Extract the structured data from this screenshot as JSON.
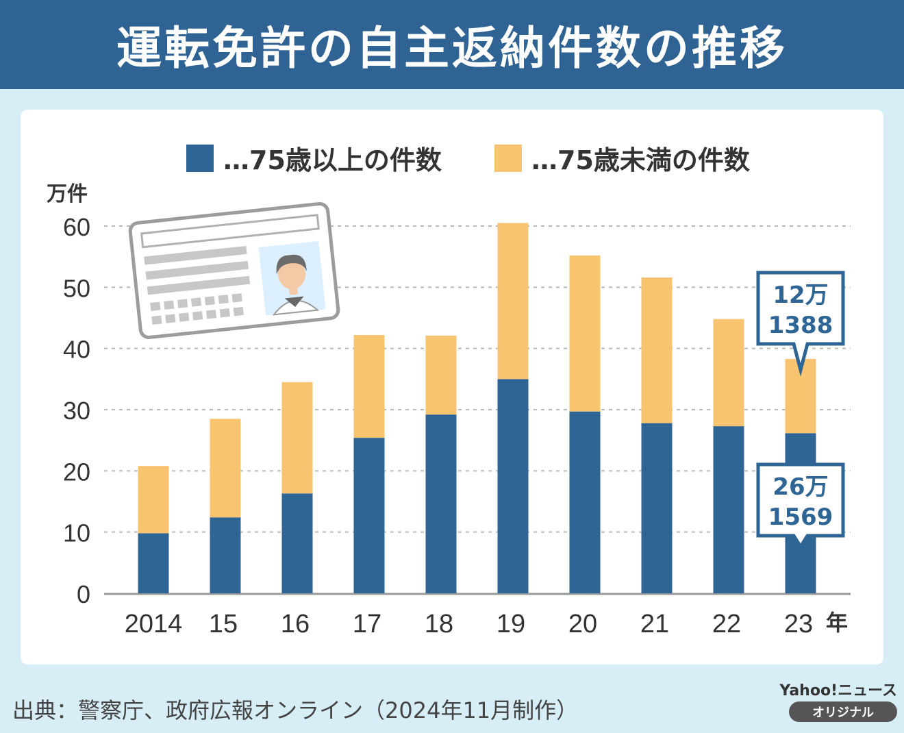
{
  "header": {
    "title": "運転免許の自主返納件数の推移"
  },
  "legend": {
    "items": [
      {
        "label": "…75歳以上の件数",
        "color": "#2f6595"
      },
      {
        "label": "…75歳未満の件数",
        "color": "#f9c470"
      }
    ]
  },
  "colors": {
    "grid": "#b8b8b8",
    "axis": "#9a9a9a",
    "text": "#333333",
    "callout_text": "#2f6595"
  },
  "icon": {
    "name": "drivers-license-card-icon"
  },
  "chart_data": {
    "type": "bar",
    "stacked": true,
    "categories": [
      "2014",
      "15",
      "16",
      "17",
      "18",
      "19",
      "20",
      "21",
      "22",
      "23"
    ],
    "series": [
      {
        "name": "…75歳以上の件数",
        "values": [
          9.8,
          12.4,
          16.3,
          25.4,
          29.2,
          35.0,
          29.7,
          27.8,
          27.3,
          26.1569
        ]
      },
      {
        "name": "…75歳未満の件数",
        "values": [
          11.0,
          16.1,
          18.2,
          16.8,
          12.9,
          25.5,
          25.5,
          23.8,
          17.5,
          12.1388
        ]
      }
    ],
    "ylim": [
      0,
      60
    ],
    "yticks": [
      "0",
      "10",
      "20",
      "30",
      "40",
      "50",
      "60"
    ],
    "ylabel": "万件",
    "xlabel": "年",
    "grid": true,
    "annotations": [
      {
        "series": "…75歳未満の件数",
        "category": "23",
        "line1": "12万",
        "line2": "1388"
      },
      {
        "series": "…75歳以上の件数",
        "category": "23",
        "line1": "26万",
        "line2": "1569"
      }
    ]
  },
  "source": "出典：警察庁、政府広報オンライン（2024年11月制作）",
  "brand": {
    "name": "Yahoo!ニュース",
    "badge": "オリジナル"
  }
}
